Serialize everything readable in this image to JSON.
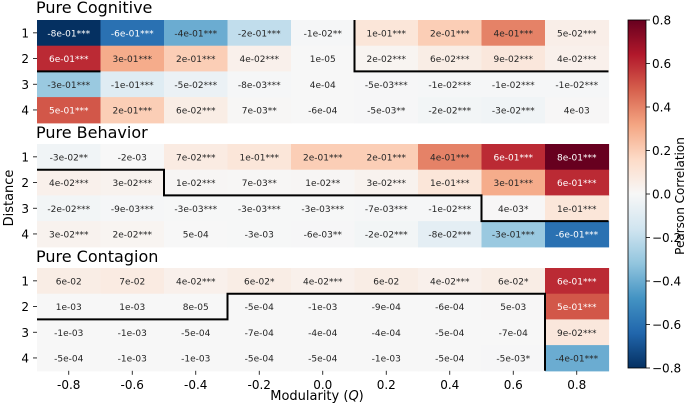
{
  "chart_data": {
    "type": "heatmap",
    "xlabel": "Modularity (Q)",
    "xlabel_text": "Modularity (",
    "xlabel_var": "Q",
    "xlabel_end": ")",
    "ylabel": "Distance",
    "x_ticks": [
      "-0.8",
      "-0.6",
      "-0.4",
      "-0.2",
      "0.0",
      "0.2",
      "0.4",
      "0.6",
      "0.8"
    ],
    "x_values": [
      -0.8,
      -0.6,
      -0.4,
      -0.2,
      0.0,
      0.2,
      0.4,
      0.6,
      0.8
    ],
    "y_ticks": [
      "1",
      "2",
      "3",
      "4"
    ],
    "colorbar": {
      "label": "Pearson Correlation",
      "range": [
        -0.8,
        0.8
      ],
      "ticks": [
        "0.8",
        "0.6",
        "0.4",
        "0.2",
        "0.0",
        "−0.2",
        "−0.4",
        "−0.6",
        "−0.8"
      ],
      "tick_values": [
        0.8,
        0.6,
        0.4,
        0.2,
        0.0,
        -0.2,
        -0.4,
        -0.6,
        -0.8
      ],
      "colormap": "RdBu_r",
      "stops": [
        "#053061",
        "#2166ac",
        "#4393c3",
        "#92c5de",
        "#d1e5f0",
        "#f7f7f7",
        "#fddbc7",
        "#f4a582",
        "#d6604d",
        "#b2182b",
        "#67001f"
      ]
    },
    "panels": [
      {
        "title": "Pure Cognitive",
        "labels": [
          [
            "-8e-01***",
            "-6e-01***",
            "-4e-01***",
            "-2e-01***",
            "-1e-02**",
            "1e-01***",
            "2e-01***",
            "4e-01***",
            "5e-02***"
          ],
          [
            "6e-01***",
            "3e-01***",
            "2e-01***",
            "4e-02***",
            "1e-05",
            "2e-02***",
            "6e-02***",
            "9e-02***",
            "4e-02***"
          ],
          [
            "-3e-01***",
            "-1e-01***",
            "-5e-02***",
            "-8e-03***",
            "4e-04",
            "-5e-03***",
            "-1e-02***",
            "-1e-02***",
            "-1e-02***"
          ],
          [
            "5e-01***",
            "2e-01***",
            "6e-02***",
            "7e-03**",
            "-6e-04",
            "-5e-03**",
            "-2e-02***",
            "-3e-02***",
            "4e-03"
          ]
        ],
        "values": [
          [
            -0.8,
            -0.6,
            -0.4,
            -0.2,
            -0.01,
            0.1,
            0.2,
            0.4,
            0.05
          ],
          [
            0.6,
            0.3,
            0.2,
            0.04,
            1e-05,
            0.02,
            0.06,
            0.09,
            0.04
          ],
          [
            -0.3,
            -0.1,
            -0.05,
            -0.008,
            0.0004,
            -0.005,
            -0.01,
            -0.01,
            -0.01
          ],
          [
            0.5,
            0.2,
            0.06,
            0.007,
            -0.0006,
            -0.005,
            -0.02,
            -0.03,
            0.004
          ]
        ],
        "boundary": [
          0,
          1,
          2,
          5,
          5
        ]
      },
      {
        "title": "Pure Behavior",
        "labels": [
          [
            "-3e-02**",
            "-2e-03",
            "7e-02***",
            "1e-01***",
            "2e-01***",
            "2e-01***",
            "4e-01***",
            "6e-01***",
            "8e-01***"
          ],
          [
            "4e-02***",
            "3e-02***",
            "1e-02***",
            "7e-03**",
            "1e-02**",
            "3e-02***",
            "1e-01***",
            "3e-01***",
            "6e-01***"
          ],
          [
            "-2e-02***",
            "-9e-03***",
            "-3e-03***",
            "-3e-03***",
            "-3e-03***",
            "-7e-03***",
            "-1e-02***",
            "4e-03*",
            "1e-01***"
          ],
          [
            "3e-02***",
            "2e-02***",
            "5e-04",
            "-3e-03",
            "-6e-03**",
            "-2e-02***",
            "-8e-02***",
            "-3e-01***",
            "-6e-01***"
          ]
        ],
        "values": [
          [
            -0.03,
            -0.002,
            0.07,
            0.1,
            0.2,
            0.2,
            0.4,
            0.6,
            0.8
          ],
          [
            0.04,
            0.03,
            0.01,
            0.007,
            0.01,
            0.03,
            0.1,
            0.3,
            0.6
          ],
          [
            -0.02,
            -0.009,
            -0.003,
            -0.003,
            -0.003,
            -0.007,
            -0.01,
            0.004,
            0.1
          ],
          [
            0.03,
            0.02,
            0.0005,
            -0.003,
            -0.006,
            -0.02,
            -0.08,
            -0.3,
            -0.6
          ]
        ],
        "boundary": [
          0,
          2,
          5,
          7,
          7
        ]
      },
      {
        "title": "Pure Contagion",
        "labels": [
          [
            "6e-02",
            "7e-02",
            "4e-02***",
            "6e-02*",
            "4e-02***",
            "6e-02",
            "4e-02***",
            "6e-02*",
            "6e-01***"
          ],
          [
            "1e-03",
            "1e-03",
            "8e-05",
            "-5e-04",
            "-1e-03",
            "-9e-04",
            "-6e-04",
            "5e-03",
            "5e-01***"
          ],
          [
            "-1e-03",
            "-1e-03",
            "-5e-04",
            "-7e-04",
            "-4e-04",
            "-4e-04",
            "-5e-04",
            "-7e-04",
            "9e-02***"
          ],
          [
            "-5e-04",
            "-1e-03",
            "-1e-03",
            "-5e-04",
            "-5e-04",
            "-1e-03",
            "-5e-04",
            "-5e-03*",
            "-4e-01***"
          ]
        ],
        "values": [
          [
            0.06,
            0.07,
            0.04,
            0.06,
            0.04,
            0.06,
            0.04,
            0.06,
            0.6
          ],
          [
            0.001,
            0.001,
            8e-05,
            -0.0005,
            -0.001,
            -0.0009,
            -0.0006,
            0.005,
            0.5
          ],
          [
            -0.001,
            -0.001,
            -0.0005,
            -0.0007,
            -0.0004,
            -0.0004,
            -0.0005,
            -0.0007,
            0.09
          ],
          [
            -0.0005,
            -0.001,
            -0.001,
            -0.0005,
            -0.0005,
            -0.001,
            -0.0005,
            -0.005,
            -0.4
          ]
        ],
        "boundary": [
          0,
          1,
          3,
          3,
          8
        ]
      }
    ]
  }
}
